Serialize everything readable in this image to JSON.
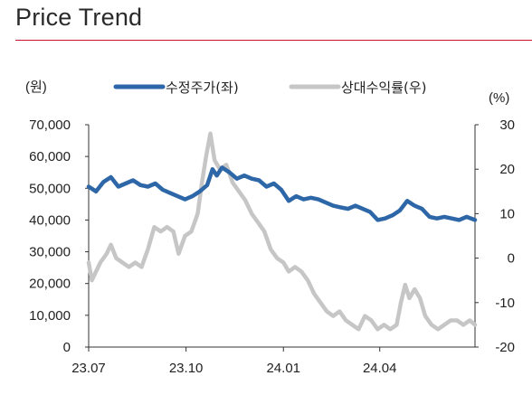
{
  "header": {
    "title": "Price Trend"
  },
  "chart_data": {
    "type": "line",
    "title": "Price Trend",
    "left_unit": "(원)",
    "right_unit": "(%)",
    "legend_position": "top",
    "grid": false,
    "x_ticks": [
      "23.07",
      "23.10",
      "24.01",
      "24.04"
    ],
    "y_left": {
      "range": [
        0,
        70000
      ],
      "ticks": [
        "0",
        "10,000",
        "20,000",
        "30,000",
        "40,000",
        "50,000",
        "60,000",
        "70,000"
      ]
    },
    "y_right": {
      "range": [
        -20,
        30
      ],
      "ticks": [
        "-20",
        "-10",
        "0",
        "10",
        "20",
        "30"
      ]
    },
    "x_range": [
      "2023-07-01",
      "2024-06-30"
    ],
    "series": [
      {
        "name": "수정주가(좌)",
        "axis": "left",
        "color": "#2e67a7",
        "points": [
          [
            "2023-07-01",
            50500
          ],
          [
            "2023-07-08",
            49000
          ],
          [
            "2023-07-15",
            52000
          ],
          [
            "2023-07-22",
            53500
          ],
          [
            "2023-07-29",
            50500
          ],
          [
            "2023-08-05",
            51500
          ],
          [
            "2023-08-12",
            52500
          ],
          [
            "2023-08-19",
            51000
          ],
          [
            "2023-08-26",
            50500
          ],
          [
            "2023-09-02",
            51500
          ],
          [
            "2023-09-09",
            49500
          ],
          [
            "2023-09-16",
            48500
          ],
          [
            "2023-09-23",
            47500
          ],
          [
            "2023-09-30",
            46500
          ],
          [
            "2023-10-07",
            47500
          ],
          [
            "2023-10-14",
            49000
          ],
          [
            "2023-10-21",
            51000
          ],
          [
            "2023-10-26",
            56000
          ],
          [
            "2023-10-30",
            54000
          ],
          [
            "2023-11-04",
            56500
          ],
          [
            "2023-11-11",
            55000
          ],
          [
            "2023-11-18",
            53000
          ],
          [
            "2023-11-25",
            54000
          ],
          [
            "2023-12-02",
            53000
          ],
          [
            "2023-12-09",
            52500
          ],
          [
            "2023-12-16",
            50500
          ],
          [
            "2023-12-23",
            51500
          ],
          [
            "2023-12-30",
            49500
          ],
          [
            "2024-01-06",
            46000
          ],
          [
            "2024-01-13",
            47500
          ],
          [
            "2024-01-20",
            46500
          ],
          [
            "2024-01-27",
            47000
          ],
          [
            "2024-02-03",
            46500
          ],
          [
            "2024-02-10",
            45500
          ],
          [
            "2024-02-17",
            44500
          ],
          [
            "2024-02-24",
            44000
          ],
          [
            "2024-03-02",
            43500
          ],
          [
            "2024-03-09",
            44500
          ],
          [
            "2024-03-16",
            43500
          ],
          [
            "2024-03-23",
            42500
          ],
          [
            "2024-03-30",
            40000
          ],
          [
            "2024-04-06",
            40500
          ],
          [
            "2024-04-13",
            41500
          ],
          [
            "2024-04-20",
            43000
          ],
          [
            "2024-04-27",
            46000
          ],
          [
            "2024-05-04",
            44500
          ],
          [
            "2024-05-11",
            43500
          ],
          [
            "2024-05-18",
            41000
          ],
          [
            "2024-05-25",
            40500
          ],
          [
            "2024-06-01",
            41000
          ],
          [
            "2024-06-08",
            40500
          ],
          [
            "2024-06-15",
            40000
          ],
          [
            "2024-06-22",
            41000
          ],
          [
            "2024-06-30",
            40000
          ]
        ]
      },
      {
        "name": "상대수익률(우)",
        "axis": "right",
        "color": "#c6c6c6",
        "points": [
          [
            "2023-07-01",
            -1
          ],
          [
            "2023-07-04",
            -5
          ],
          [
            "2023-07-08",
            -3
          ],
          [
            "2023-07-12",
            -1
          ],
          [
            "2023-07-18",
            1
          ],
          [
            "2023-07-22",
            3
          ],
          [
            "2023-07-27",
            0
          ],
          [
            "2023-08-02",
            -1
          ],
          [
            "2023-08-08",
            -2
          ],
          [
            "2023-08-14",
            -1
          ],
          [
            "2023-08-20",
            -2
          ],
          [
            "2023-08-26",
            2
          ],
          [
            "2023-09-01",
            7
          ],
          [
            "2023-09-07",
            6
          ],
          [
            "2023-09-13",
            7
          ],
          [
            "2023-09-19",
            6
          ],
          [
            "2023-09-24",
            1
          ],
          [
            "2023-09-30",
            5
          ],
          [
            "2023-10-06",
            6
          ],
          [
            "2023-10-12",
            10
          ],
          [
            "2023-10-16",
            17
          ],
          [
            "2023-10-20",
            23
          ],
          [
            "2023-10-24",
            28
          ],
          [
            "2023-10-28",
            22
          ],
          [
            "2023-11-02",
            20
          ],
          [
            "2023-11-08",
            21
          ],
          [
            "2023-11-14",
            17
          ],
          [
            "2023-11-20",
            15
          ],
          [
            "2023-11-26",
            13
          ],
          [
            "2023-12-02",
            10
          ],
          [
            "2023-12-08",
            8
          ],
          [
            "2023-12-14",
            6
          ],
          [
            "2023-12-20",
            2
          ],
          [
            "2023-12-26",
            0
          ],
          [
            "2024-01-01",
            -1
          ],
          [
            "2024-01-06",
            -3
          ],
          [
            "2024-01-12",
            -2
          ],
          [
            "2024-01-18",
            -3
          ],
          [
            "2024-01-24",
            -5
          ],
          [
            "2024-01-30",
            -8
          ],
          [
            "2024-02-05",
            -10
          ],
          [
            "2024-02-11",
            -12
          ],
          [
            "2024-02-17",
            -13
          ],
          [
            "2024-02-23",
            -12
          ],
          [
            "2024-02-29",
            -14
          ],
          [
            "2024-03-06",
            -15
          ],
          [
            "2024-03-12",
            -16
          ],
          [
            "2024-03-18",
            -13
          ],
          [
            "2024-03-24",
            -14
          ],
          [
            "2024-03-30",
            -16
          ],
          [
            "2024-04-05",
            -15
          ],
          [
            "2024-04-11",
            -16
          ],
          [
            "2024-04-17",
            -15
          ],
          [
            "2024-04-21",
            -10
          ],
          [
            "2024-04-25",
            -6
          ],
          [
            "2024-04-29",
            -9
          ],
          [
            "2024-05-04",
            -7
          ],
          [
            "2024-05-09",
            -9
          ],
          [
            "2024-05-14",
            -13
          ],
          [
            "2024-05-20",
            -15
          ],
          [
            "2024-05-26",
            -16
          ],
          [
            "2024-06-01",
            -15
          ],
          [
            "2024-06-07",
            -14
          ],
          [
            "2024-06-13",
            -14
          ],
          [
            "2024-06-19",
            -15
          ],
          [
            "2024-06-25",
            -14
          ],
          [
            "2024-06-30",
            -15
          ]
        ]
      }
    ]
  }
}
